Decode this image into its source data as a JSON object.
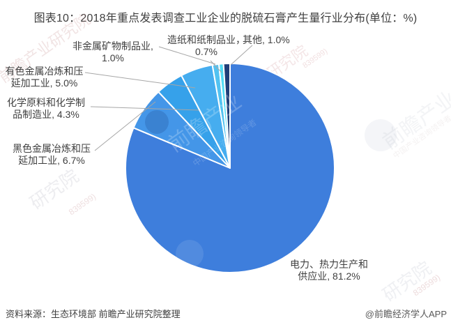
{
  "title": "图表10：2018年重点发表调查工业企业的脱硫石膏产生量行业分布(单位：%)",
  "source_note": "资料来源：生态环境部 前瞻产业研究院整理",
  "credit": "@前瞻经济学人APP",
  "watermark": {
    "text": "前瞻产业研究院",
    "text_short": "前瞻产业",
    "text2": "研究院",
    "tagline": "中国产业咨询领导者",
    "digits": "839599)"
  },
  "chart_data": {
    "type": "pie",
    "title": "2018年重点发表调查工业企业的脱硫石膏产生量行业分布",
    "unit": "%",
    "start_angle": "top",
    "direction": "clockwise",
    "legend_position": "none",
    "series": [
      {
        "name": "电力、热力生产和供应业",
        "value": 81.2,
        "color": "#3E7EDC"
      },
      {
        "name": "黑色金属冶炼和压延加工业",
        "value": 6.7,
        "color": "#4496E8"
      },
      {
        "name": "化学原料和化学制品制造业",
        "value": 4.3,
        "color": "#36A1EA"
      },
      {
        "name": "有色金属冶炼和压延加工业",
        "value": 5.0,
        "color": "#46ADEF"
      },
      {
        "name": "非金属矿物制品业",
        "value": 1.0,
        "color": "#52C2F1"
      },
      {
        "name": "造纸和纸制品业",
        "value": 0.7,
        "color": "#52DCF5"
      },
      {
        "name": "其他",
        "value": 1.0,
        "color": "#1F3E78"
      }
    ],
    "labels": {
      "power": {
        "line1": "电力、热力生产和",
        "line2": "供应业, 81.2%"
      },
      "ferrous": {
        "line1": "黑色金属冶炼和压",
        "line2": "延加工业, 6.7%"
      },
      "chemical": {
        "line1": "化学原料和化学制",
        "line2": "品制造业, 4.3%"
      },
      "nonferrous": {
        "line1": "有色金属冶炼和压",
        "line2": "延加工业, 5.0%"
      },
      "nonmetal": {
        "line1": "非金属矿物制品业,",
        "line2": "1.0%"
      },
      "paper": {
        "line1": "造纸和纸制品业，",
        "line2": "0.7%"
      },
      "other": {
        "line1": "其他, 1.0%"
      }
    }
  }
}
